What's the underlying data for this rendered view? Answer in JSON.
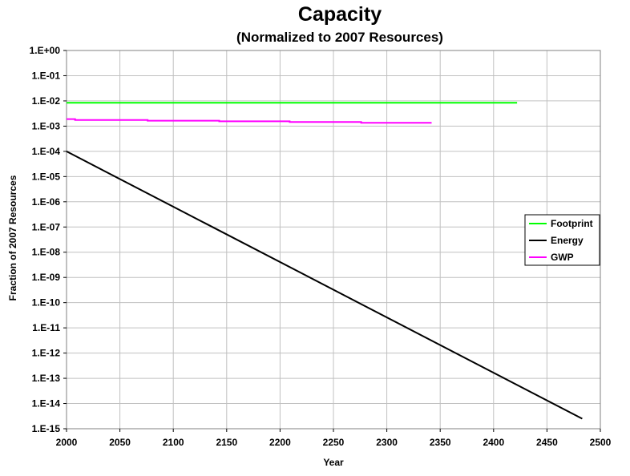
{
  "chart_data": {
    "type": "line",
    "title": "Capacity",
    "subtitle": "(Normalized to 2007 Resources)",
    "xlabel": "Year",
    "ylabel": "Fraction of 2007 Resources",
    "xlim": [
      2000,
      2500
    ],
    "x_ticks": [
      "2000",
      "2050",
      "2100",
      "2150",
      "2200",
      "2250",
      "2300",
      "2350",
      "2400",
      "2450",
      "2500"
    ],
    "y_scale": "log",
    "ylim": [
      1e-15,
      1
    ],
    "y_ticks": [
      "1.E+00",
      "1.E-01",
      "1.E-02",
      "1.E-03",
      "1.E-04",
      "1.E-05",
      "1.E-06",
      "1.E-07",
      "1.E-08",
      "1.E-09",
      "1.E-10",
      "1.E-11",
      "1.E-12",
      "1.E-13",
      "1.E-14",
      "1.E-15"
    ],
    "grid": true,
    "legend_position": "right",
    "series": [
      {
        "name": "Footprint",
        "color": "#00ff00",
        "points": [
          [
            2000,
            0.0085
          ],
          [
            2422,
            0.0085
          ]
        ]
      },
      {
        "name": "Energy",
        "color": "#000000",
        "points": [
          [
            2000,
            0.0001
          ],
          [
            2483,
            2.5e-15
          ]
        ]
      },
      {
        "name": "GWP",
        "color": "#ff00ff",
        "points": [
          [
            2000,
            0.0019
          ],
          [
            2008,
            0.0019
          ],
          [
            2008,
            0.00175
          ],
          [
            2076,
            0.00175
          ],
          [
            2076,
            0.00165
          ],
          [
            2143,
            0.00165
          ],
          [
            2143,
            0.00155
          ],
          [
            2209,
            0.00155
          ],
          [
            2209,
            0.00145
          ],
          [
            2276,
            0.00145
          ],
          [
            2276,
            0.00135
          ],
          [
            2342,
            0.00135
          ]
        ]
      }
    ]
  }
}
